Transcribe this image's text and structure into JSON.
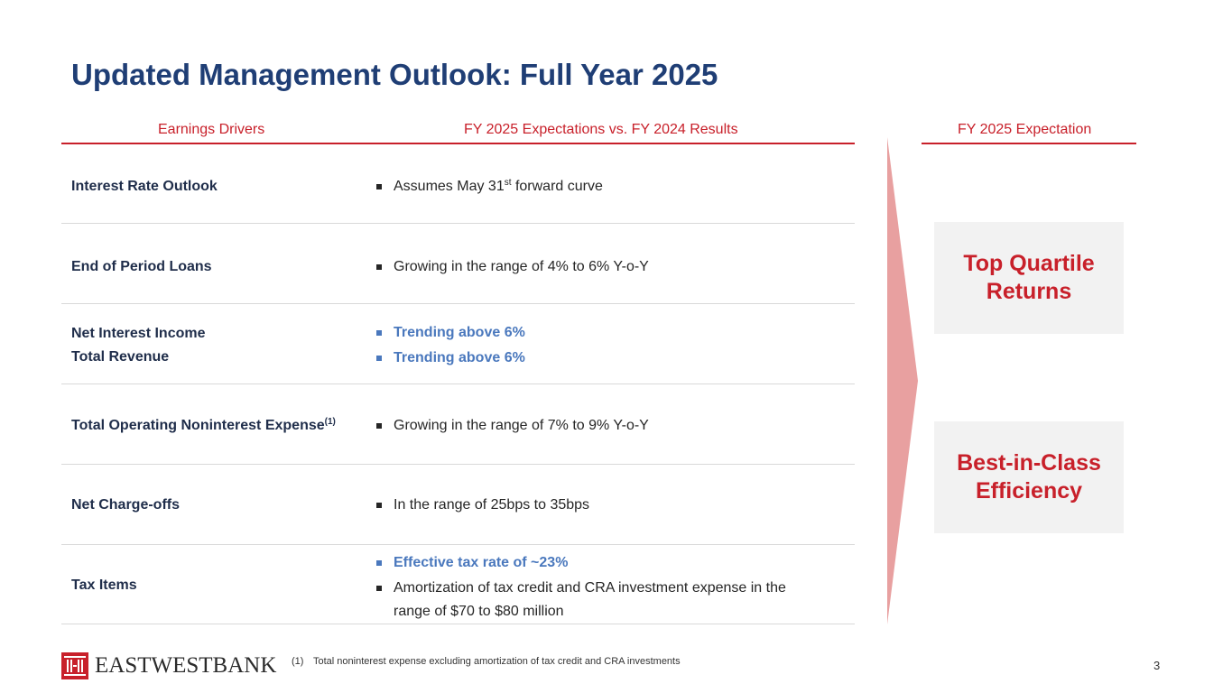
{
  "title": "Updated Management Outlook: Full Year 2025",
  "columns": {
    "drivers": "Earnings Drivers",
    "expectations": "FY 2025 Expectations vs. FY 2024 Results",
    "outcome": "FY 2025 Expectation"
  },
  "rows": [
    {
      "driver": "Interest Rate Outlook",
      "bullet_pre": "Assumes May 31",
      "bullet_sup": "st",
      "bullet_post": " forward curve"
    },
    {
      "driver": "End of Period Loans",
      "bullet": "Growing in the range of 4% to 6% Y-o-Y"
    },
    {
      "driver_1": "Net Interest Income",
      "driver_2": "Total Revenue",
      "bullet_1": "Trending above 6%",
      "bullet_2": "Trending above 6%"
    },
    {
      "driver": "Total Operating Noninterest Expense",
      "driver_sup": "(1)",
      "bullet": "Growing in the range of 7% to 9% Y-o-Y"
    },
    {
      "driver": "Net Charge-offs",
      "bullet": "In the range of 25bps to 35bps"
    },
    {
      "driver": "Tax Items",
      "bullet_1": "Effective tax rate of ~23%",
      "bullet_2": "Amortization of tax credit and CRA investment expense in the range of $70 to $80 million"
    }
  ],
  "outcomes": [
    "Top Quartile\nReturns",
    "Best-in-Class\nEfficiency"
  ],
  "logo_text": "EASTWESTBANK",
  "footnote": {
    "num": "(1)",
    "text": "Total noninterest expense excluding amortization of tax credit and CRA investments"
  },
  "page_number": "3",
  "colors": {
    "title": "#1f3e75",
    "accent_red": "#c8202a",
    "highlight_blue": "#4a78bd",
    "chevron": "#e8a0a0",
    "panel": "#f2f2f2"
  }
}
